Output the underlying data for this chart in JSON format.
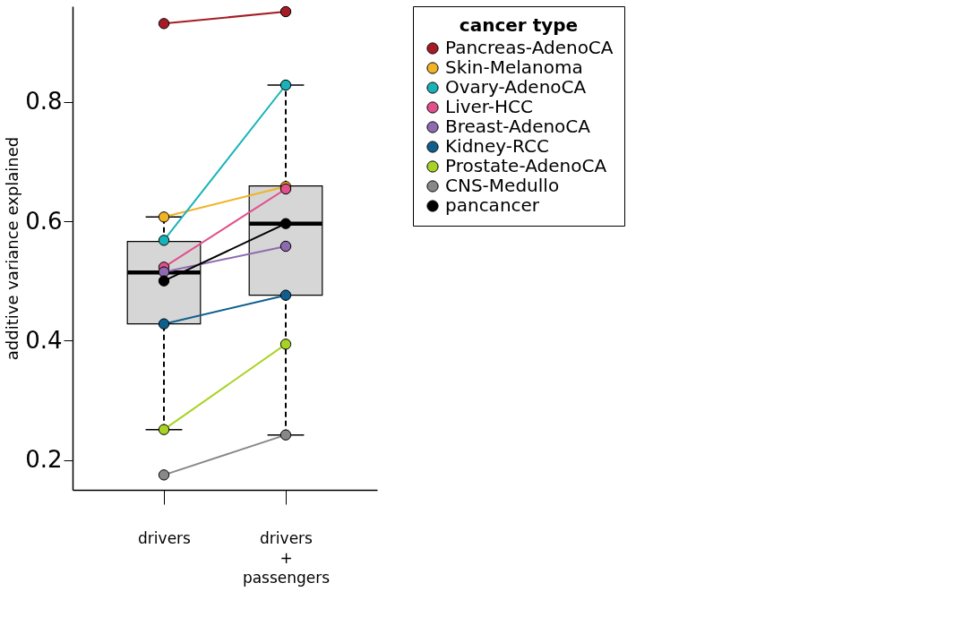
{
  "chart_data": {
    "type": "box",
    "ylabel": "additive variance explained",
    "legend_title": "cancer type",
    "legend": "right",
    "grid": false,
    "marker": "circle",
    "line_style": "solid",
    "categories": [
      "drivers",
      "drivers + passengers"
    ],
    "ylim": [
      0.15,
      0.96
    ],
    "yticks": [
      0.2,
      0.4,
      0.6,
      0.8
    ],
    "boxes": [
      {
        "low": 0.251,
        "q1": 0.428,
        "median": 0.514,
        "q3": 0.566,
        "high": 0.607
      },
      {
        "low": 0.242,
        "q1": 0.476,
        "median": 0.596,
        "q3": 0.659,
        "high": 0.828
      }
    ],
    "series": [
      {
        "name": "Pancreas-AdenoCA",
        "type": "line",
        "color": "#a51c24",
        "values": [
          0.931,
          0.951
        ]
      },
      {
        "name": "Skin-Melanoma",
        "type": "line",
        "color": "#f0b323",
        "values": [
          0.607,
          0.658
        ]
      },
      {
        "name": "Ovary-AdenoCA",
        "type": "line",
        "color": "#17b3b8",
        "values": [
          0.568,
          0.828
        ]
      },
      {
        "name": "Liver-HCC",
        "type": "line",
        "color": "#e0508a",
        "values": [
          0.523,
          0.654
        ]
      },
      {
        "name": "Breast-AdenoCA",
        "type": "line",
        "color": "#8e6bb0",
        "values": [
          0.515,
          0.558
        ]
      },
      {
        "name": "Kidney-RCC",
        "type": "line",
        "color": "#0e5f8e",
        "values": [
          0.428,
          0.476
        ]
      },
      {
        "name": "Prostate-AdenoCA",
        "type": "line",
        "color": "#a8d324",
        "values": [
          0.251,
          0.394
        ]
      },
      {
        "name": "CNS-Medullo",
        "type": "line",
        "color": "#888888",
        "values": [
          0.175,
          0.242
        ]
      },
      {
        "name": "pancancer",
        "type": "line",
        "color": "#000000",
        "values": [
          0.5,
          0.596
        ]
      }
    ]
  }
}
